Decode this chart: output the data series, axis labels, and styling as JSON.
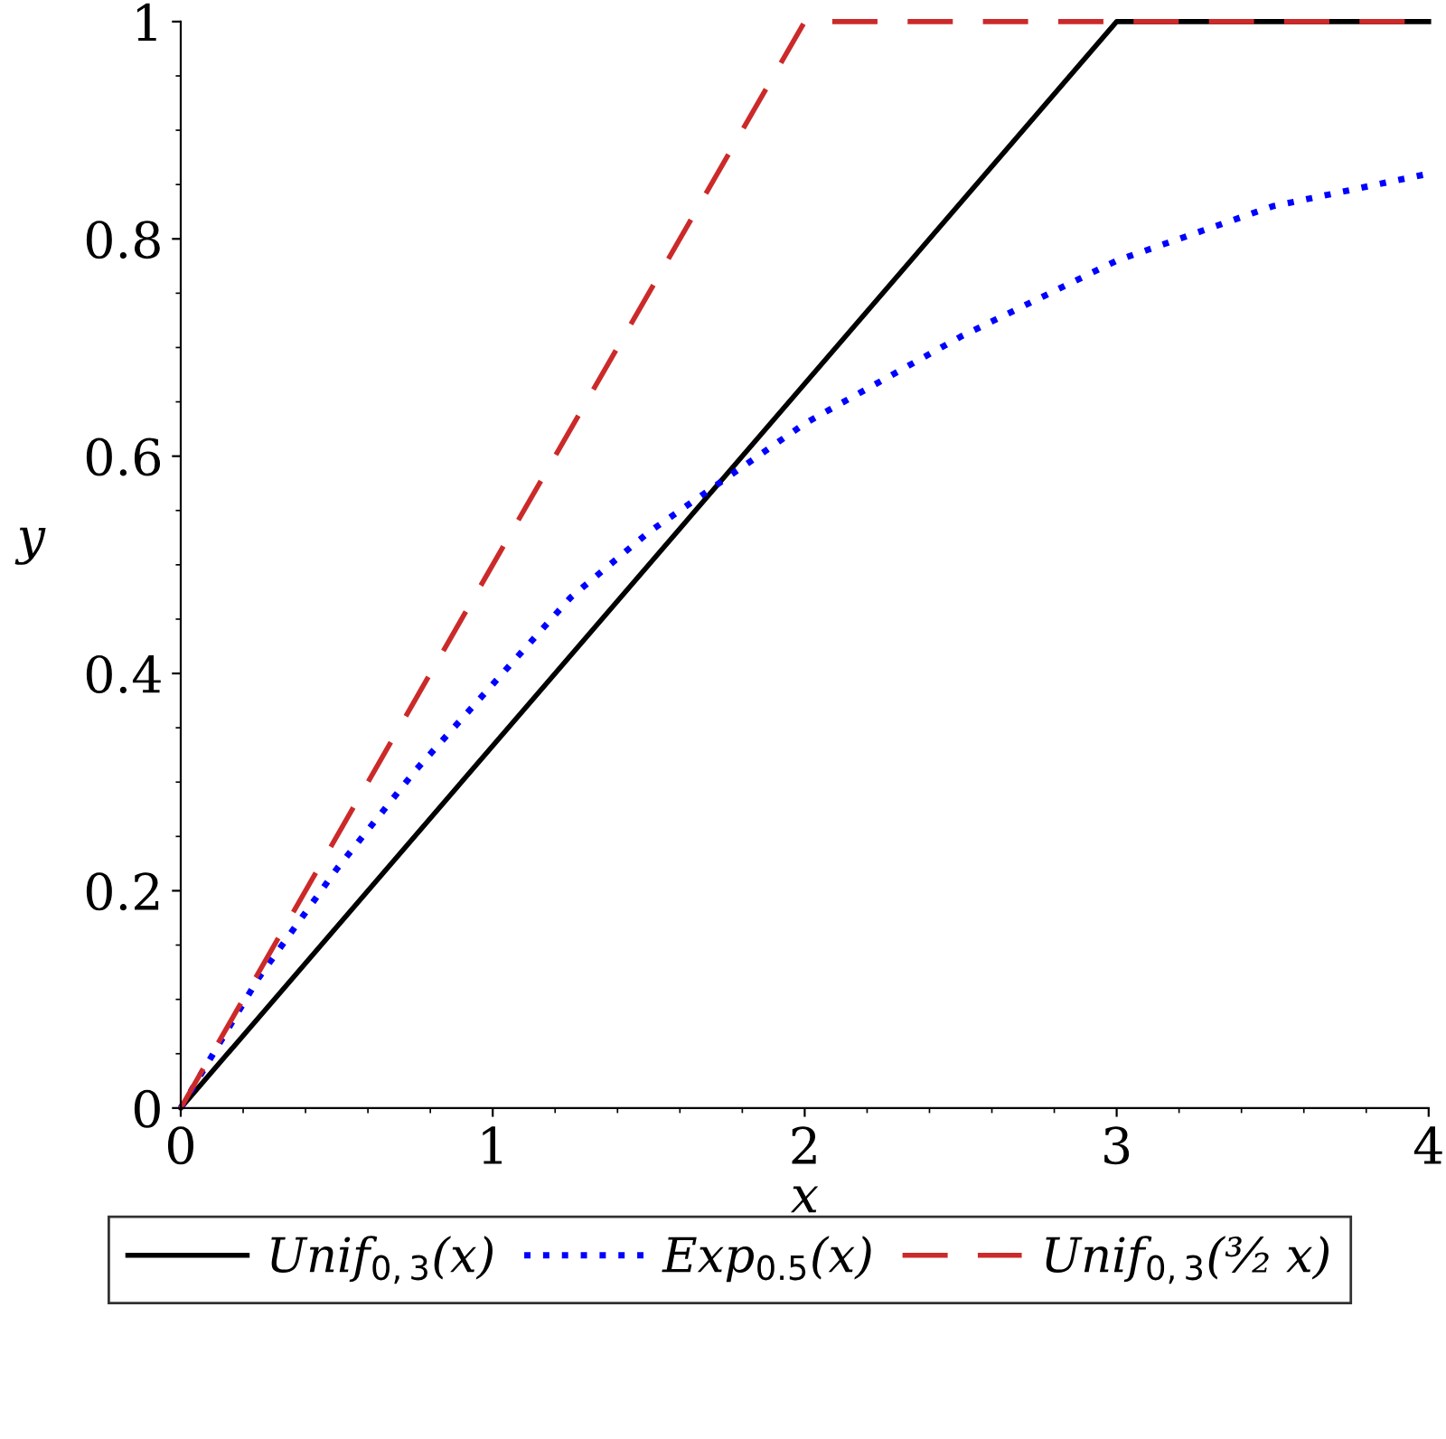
{
  "chart_data": {
    "type": "line",
    "xlabel": "x",
    "ylabel": "y",
    "xlim": [
      0,
      4
    ],
    "ylim": [
      0,
      1
    ],
    "xticks": [
      0,
      1,
      2,
      3,
      4
    ],
    "yticks": [
      0,
      0.2,
      0.4,
      0.6,
      0.8,
      1
    ],
    "grid": false,
    "legend": "bottom",
    "series": [
      {
        "name": "Unif$_{0,3}$(x)",
        "color": "#000000",
        "line_style": "solid",
        "x": [
          0,
          3,
          4
        ],
        "values": [
          0,
          1,
          1
        ]
      },
      {
        "name": "Exp$_{0.5}$(x)",
        "color": "#0000ff",
        "line_style": "dotted",
        "x": [
          0,
          0.25,
          0.5,
          0.75,
          1,
          1.25,
          1.5,
          1.75,
          2,
          2.5,
          3,
          3.5,
          4
        ],
        "values": [
          0,
          0.12,
          0.22,
          0.31,
          0.39,
          0.47,
          0.53,
          0.58,
          0.63,
          0.71,
          0.78,
          0.83,
          0.86
        ]
      },
      {
        "name": "Unif$_{0,3}$(³⁄₂ x)",
        "color": "#cc2a2a",
        "line_style": "dashed",
        "x": [
          0,
          2,
          4
        ],
        "values": [
          0,
          1,
          1
        ]
      }
    ]
  }
}
